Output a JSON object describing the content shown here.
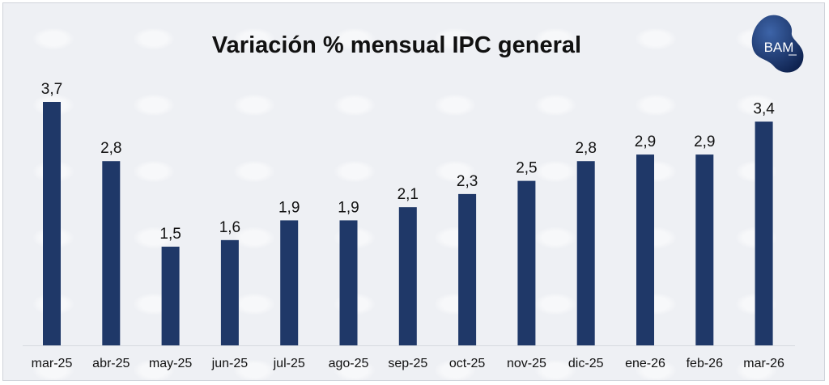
{
  "logo_text": "BAM",
  "chart_data": {
    "type": "bar",
    "title": "Variación % mensual IPC general",
    "categories": [
      "mar-25",
      "abr-25",
      "may-25",
      "jun-25",
      "jul-25",
      "ago-25",
      "sep-25",
      "oct-25",
      "nov-25",
      "dic-25",
      "ene-26",
      "feb-26",
      "mar-26"
    ],
    "values": [
      3.7,
      2.8,
      1.5,
      1.6,
      1.9,
      1.9,
      2.1,
      2.3,
      2.5,
      2.8,
      2.9,
      2.9,
      3.4
    ],
    "data_labels": [
      "3,7",
      "2,8",
      "1,5",
      "1,6",
      "1,9",
      "1,9",
      "2,1",
      "2,3",
      "2,5",
      "2,8",
      "2,9",
      "2,9",
      "3,4"
    ],
    "xlabel": "",
    "ylabel": "",
    "ylim": [
      0,
      3.7
    ],
    "grid": false,
    "legend": "none",
    "bar_color": "#1f3868"
  }
}
